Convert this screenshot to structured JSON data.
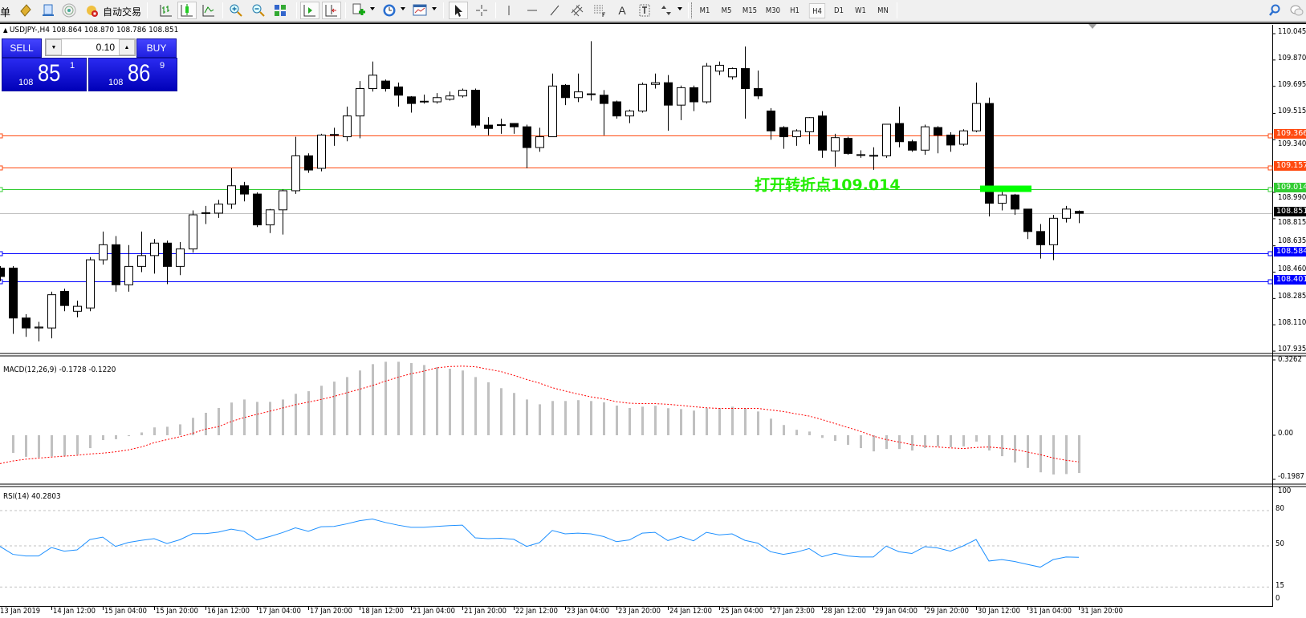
{
  "toolbar": {
    "cut_label": "单",
    "autotrading_label": "自动交易",
    "icons": [
      "metaeditor-icon",
      "terminal-icon",
      "signals-icon",
      "autotrading-icon",
      "bar-chart-icon",
      "candlestick-chart-icon",
      "line-chart-icon",
      "zoom-in-icon",
      "zoom-out-icon",
      "tile-windows-icon",
      "auto-scroll-icon",
      "chart-shift-icon",
      "indicators-icon",
      "periods-icon",
      "templates-icon",
      "cursor-icon",
      "crosshair-icon",
      "vertical-line-icon",
      "horizontal-line-icon",
      "trendline-icon",
      "equidistant-channel-icon",
      "fibonacci-icon",
      "text-icon",
      "text-label-icon",
      "arrows-icon",
      "search-icon",
      "chat-icon"
    ],
    "text_tool": "A",
    "timeframes": [
      "M1",
      "M5",
      "M15",
      "M30",
      "H1",
      "H4",
      "D1",
      "W1",
      "MN"
    ],
    "selected_timeframe": "H4"
  },
  "chart": {
    "header": "USDJPY-,H4  108.864 108.870 108.786 108.851",
    "symbol": "USDJPY-",
    "timeframe": "H4",
    "ohlc": {
      "open": 108.864,
      "high": 108.87,
      "low": 108.786,
      "close": 108.851
    }
  },
  "trade_panel": {
    "sell_label": "SELL",
    "buy_label": "BUY",
    "lot": "0.10",
    "sell_price": {
      "prefix": "108",
      "big": "85",
      "sup": "1"
    },
    "buy_price": {
      "prefix": "108",
      "big": "86",
      "sup": "9"
    },
    "color": "#1a1ae0"
  },
  "annotation": {
    "text": "打开转折点109.014",
    "color": "#22ee00"
  },
  "colors": {
    "orange_line": "#ff4a10",
    "green_line": "#33cc33",
    "blue_line": "#0000ff",
    "bid_line": "#c0c0c0",
    "macd_hist": "#c0c0c0",
    "macd_signal": "#ff0000",
    "rsi": "#1e90ff"
  },
  "price_axis": {
    "ticks": [
      "110.045",
      "109.870",
      "109.695",
      "109.515",
      "109.340",
      "108.990",
      "108.815",
      "108.635",
      "108.460",
      "108.285",
      "108.110",
      "107.935"
    ],
    "lines": [
      {
        "price": "109.366",
        "color": "#ff4a10"
      },
      {
        "price": "109.157",
        "color": "#ff4a10"
      },
      {
        "price": "109.014",
        "color": "#33cc33"
      },
      {
        "price": "108.851",
        "color": "#000000",
        "line_color": "#c0c0c0"
      },
      {
        "price": "108.584",
        "color": "#0000ff"
      },
      {
        "price": "108.401",
        "color": "#0000ff"
      }
    ]
  },
  "time_axis": [
    "13 Jan 2019",
    "14 Jan 12:00",
    "15 Jan 04:00",
    "15 Jan 20:00",
    "16 Jan 12:00",
    "17 Jan 04:00",
    "17 Jan 20:00",
    "18 Jan 12:00",
    "21 Jan 04:00",
    "21 Jan 20:00",
    "22 Jan 12:00",
    "23 Jan 04:00",
    "23 Jan 20:00",
    "24 Jan 12:00",
    "25 Jan 04:00",
    "27 Jan 23:00",
    "28 Jan 12:00",
    "29 Jan 04:00",
    "29 Jan 20:00",
    "30 Jan 12:00",
    "31 Jan 04:00",
    "31 Jan 20:00"
  ],
  "macd": {
    "label": "MACD(12,26,9) -0.1728 -0.1220",
    "ticks": [
      "0.3262",
      "0.00",
      "-0.1987"
    ]
  },
  "rsi": {
    "label": "RSI(14) 40.2803",
    "ticks": [
      "100",
      "80",
      "50",
      "15",
      "0"
    ],
    "levels": [
      80,
      50,
      15
    ]
  },
  "chart_data": {
    "type": "candlestick",
    "price_range": [
      107.935,
      110.045
    ],
    "zone_marker": {
      "price": 109.014,
      "color": "#00ff00"
    },
    "ohlc": [
      [
        108.487,
        108.5,
        108.4,
        108.431
      ],
      [
        108.487,
        108.5,
        108.05,
        108.155
      ],
      [
        108.155,
        108.18,
        108.03,
        108.089
      ],
      [
        108.089,
        108.13,
        108.0,
        108.095
      ],
      [
        108.089,
        108.33,
        108.02,
        108.31
      ],
      [
        108.332,
        108.35,
        108.2,
        108.238
      ],
      [
        108.2,
        108.27,
        108.16,
        108.233
      ],
      [
        108.222,
        108.56,
        108.2,
        108.542
      ],
      [
        108.542,
        108.73,
        108.51,
        108.642
      ],
      [
        108.642,
        108.7,
        108.33,
        108.376
      ],
      [
        108.376,
        108.64,
        108.33,
        108.498
      ],
      [
        108.498,
        108.73,
        108.46,
        108.57
      ],
      [
        108.57,
        108.68,
        108.45,
        108.653
      ],
      [
        108.653,
        108.67,
        108.38,
        108.498
      ],
      [
        108.498,
        108.66,
        108.44,
        108.614
      ],
      [
        108.614,
        108.87,
        108.59,
        108.841
      ],
      [
        108.852,
        108.9,
        108.78,
        108.855
      ],
      [
        108.852,
        108.94,
        108.82,
        108.912
      ],
      [
        108.912,
        109.15,
        108.88,
        109.034
      ],
      [
        109.034,
        109.06,
        108.93,
        108.979
      ],
      [
        108.979,
        108.99,
        108.76,
        108.774
      ],
      [
        108.774,
        108.88,
        108.72,
        108.874
      ],
      [
        108.874,
        109.01,
        108.71,
        109.001
      ],
      [
        109.001,
        109.36,
        108.98,
        109.233
      ],
      [
        109.233,
        109.25,
        109.12,
        109.139
      ],
      [
        109.15,
        109.38,
        109.13,
        109.371
      ],
      [
        109.371,
        109.42,
        109.3,
        109.375
      ],
      [
        109.36,
        109.56,
        109.33,
        109.498
      ],
      [
        109.498,
        109.73,
        109.35,
        109.68
      ],
      [
        109.68,
        109.86,
        109.66,
        109.769
      ],
      [
        109.73,
        109.74,
        109.66,
        109.68
      ],
      [
        109.691,
        109.72,
        109.56,
        109.636
      ],
      [
        109.625,
        109.63,
        109.52,
        109.581
      ],
      [
        109.592,
        109.64,
        109.58,
        109.596
      ],
      [
        109.592,
        109.65,
        109.58,
        109.62
      ],
      [
        109.609,
        109.66,
        109.6,
        109.631
      ],
      [
        109.631,
        109.68,
        109.62,
        109.669
      ],
      [
        109.669,
        109.68,
        109.42,
        109.437
      ],
      [
        109.437,
        109.49,
        109.37,
        109.415
      ],
      [
        109.437,
        109.48,
        109.38,
        109.44
      ],
      [
        109.448,
        109.45,
        109.38,
        109.426
      ],
      [
        109.426,
        109.44,
        109.15,
        109.288
      ],
      [
        109.288,
        109.42,
        109.26,
        109.36
      ],
      [
        109.36,
        109.78,
        109.36,
        109.697
      ],
      [
        109.702,
        109.71,
        109.57,
        109.62
      ],
      [
        109.62,
        109.78,
        109.59,
        109.658
      ],
      [
        109.642,
        109.995,
        109.6,
        109.645
      ],
      [
        109.636,
        109.67,
        109.37,
        109.581
      ],
      [
        109.592,
        109.6,
        109.48,
        109.498
      ],
      [
        109.498,
        109.54,
        109.45,
        109.531
      ],
      [
        109.531,
        109.72,
        109.52,
        109.708
      ],
      [
        109.708,
        109.78,
        109.68,
        109.719
      ],
      [
        109.719,
        109.77,
        109.4,
        109.57
      ],
      [
        109.57,
        109.7,
        109.47,
        109.686
      ],
      [
        109.686,
        109.7,
        109.53,
        109.592
      ],
      [
        109.592,
        109.85,
        109.58,
        109.83
      ],
      [
        109.796,
        109.86,
        109.77,
        109.835
      ],
      [
        109.758,
        109.82,
        109.74,
        109.813
      ],
      [
        109.813,
        109.96,
        109.48,
        109.68
      ],
      [
        109.68,
        109.8,
        109.61,
        109.631
      ],
      [
        109.531,
        109.55,
        109.34,
        109.399
      ],
      [
        109.421,
        109.43,
        109.28,
        109.36
      ],
      [
        109.36,
        109.41,
        109.3,
        109.399
      ],
      [
        109.393,
        109.49,
        109.31,
        109.487
      ],
      [
        109.498,
        109.53,
        109.22,
        109.271
      ],
      [
        109.266,
        109.38,
        109.16,
        109.354
      ],
      [
        109.349,
        109.36,
        109.24,
        109.249
      ],
      [
        109.238,
        109.27,
        109.22,
        109.241
      ],
      [
        109.233,
        109.29,
        109.14,
        109.236
      ],
      [
        109.233,
        109.44,
        109.22,
        109.443
      ],
      [
        109.448,
        109.56,
        109.29,
        109.327
      ],
      [
        109.327,
        109.34,
        109.26,
        109.271
      ],
      [
        109.271,
        109.44,
        109.24,
        109.426
      ],
      [
        109.421,
        109.43,
        109.25,
        109.371
      ],
      [
        109.371,
        109.39,
        109.26,
        109.305
      ],
      [
        109.31,
        109.41,
        109.3,
        109.399
      ],
      [
        109.399,
        109.72,
        109.39,
        109.581
      ],
      [
        109.581,
        109.62,
        108.83,
        108.918
      ],
      [
        108.918,
        109.0,
        108.87,
        108.973
      ],
      [
        108.973,
        108.98,
        108.84,
        108.879
      ],
      [
        108.879,
        108.88,
        108.68,
        108.73
      ],
      [
        108.73,
        108.78,
        108.55,
        108.642
      ],
      [
        108.642,
        108.84,
        108.54,
        108.818
      ],
      [
        108.818,
        108.9,
        108.79,
        108.879
      ],
      [
        108.864,
        108.87,
        108.786,
        108.851
      ]
    ],
    "macd_range": [
      -0.1987,
      0.3262
    ],
    "macd_histogram": [
      null,
      -0.081,
      -0.099,
      -0.102,
      -0.097,
      -0.094,
      -0.089,
      -0.059,
      -0.022,
      -0.018,
      -0.004,
      0.013,
      0.036,
      0.039,
      0.05,
      0.08,
      0.103,
      0.125,
      0.15,
      0.164,
      0.153,
      0.153,
      0.164,
      0.19,
      0.202,
      0.227,
      0.246,
      0.267,
      0.297,
      0.326,
      0.337,
      0.337,
      0.331,
      0.322,
      0.312,
      0.305,
      0.297,
      0.267,
      0.243,
      0.216,
      0.194,
      0.164,
      0.142,
      0.157,
      0.157,
      0.161,
      0.157,
      0.151,
      0.136,
      0.125,
      0.131,
      0.135,
      0.124,
      0.12,
      0.113,
      0.124,
      0.125,
      0.131,
      0.123,
      0.109,
      0.076,
      0.047,
      0.025,
      0.017,
      -0.012,
      -0.026,
      -0.044,
      -0.059,
      -0.074,
      -0.063,
      -0.063,
      -0.07,
      -0.059,
      -0.051,
      -0.055,
      -0.051,
      -0.029,
      -0.07,
      -0.096,
      -0.125,
      -0.15,
      -0.17,
      -0.18,
      -0.178,
      -0.1728
    ],
    "macd_signal": [
      -0.13,
      -0.118,
      -0.11,
      -0.105,
      -0.1,
      -0.096,
      -0.092,
      -0.086,
      -0.082,
      -0.076,
      -0.067,
      -0.054,
      -0.034,
      -0.02,
      -0.007,
      0.009,
      0.028,
      0.039,
      0.063,
      0.081,
      0.096,
      0.11,
      0.125,
      0.14,
      0.152,
      0.164,
      0.178,
      0.195,
      0.211,
      0.228,
      0.248,
      0.266,
      0.282,
      0.294,
      0.309,
      0.315,
      0.317,
      0.314,
      0.303,
      0.292,
      0.275,
      0.256,
      0.239,
      0.218,
      0.203,
      0.189,
      0.176,
      0.167,
      0.154,
      0.147,
      0.145,
      0.145,
      0.142,
      0.137,
      0.131,
      0.126,
      0.123,
      0.123,
      0.123,
      0.123,
      0.116,
      0.109,
      0.098,
      0.088,
      0.072,
      0.054,
      0.036,
      0.018,
      -0.004,
      -0.02,
      -0.031,
      -0.043,
      -0.05,
      -0.054,
      -0.058,
      -0.061,
      -0.056,
      -0.054,
      -0.059,
      -0.065,
      -0.077,
      -0.089,
      -0.104,
      -0.115,
      -0.122
    ],
    "rsi": [
      49.5,
      42.8,
      41.4,
      41.4,
      48.6,
      45.5,
      46.6,
      55.4,
      57.4,
      49.5,
      52.9,
      54.7,
      56.1,
      52.0,
      55.2,
      60.4,
      60.4,
      61.7,
      64.2,
      62.4,
      55.0,
      57.9,
      61.3,
      65.3,
      62.4,
      66.3,
      66.5,
      68.7,
      71.4,
      72.8,
      69.9,
      67.6,
      65.8,
      65.8,
      66.5,
      67.2,
      67.6,
      56.8,
      56.1,
      56.5,
      55.6,
      49.5,
      52.7,
      63.1,
      60.2,
      60.8,
      60.2,
      57.9,
      53.6,
      55.0,
      60.8,
      61.5,
      54.5,
      57.9,
      54.3,
      61.5,
      59.3,
      60.2,
      54.7,
      52.3,
      45.0,
      42.8,
      44.6,
      47.7,
      40.7,
      43.7,
      41.4,
      40.5,
      40.5,
      49.8,
      45.0,
      43.5,
      49.3,
      48.2,
      45.5,
      50.0,
      55.4,
      37.1,
      38.3,
      36.7,
      34.2,
      31.9,
      38.3,
      40.5,
      40.2803
    ]
  }
}
